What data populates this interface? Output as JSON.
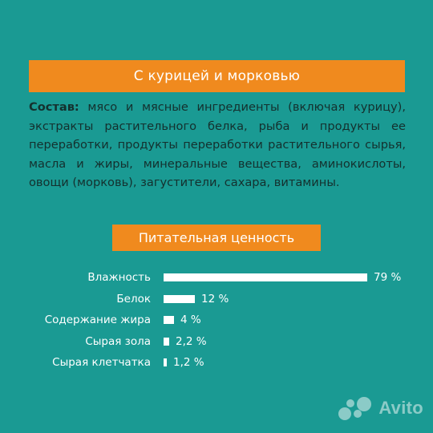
{
  "title": "С курицей и морковью",
  "composition": {
    "label": "Состав:",
    "text": "мясо и мясные ингредиенты (включая курицу), экстракты растительного белка, рыба и продукты ее переработки, продукты переработки растительного сырья, масла и жиры, минеральные вещества, аминокислоты, овощи (морковь), загустители, сахара, витамины."
  },
  "nutrition": {
    "heading": "Питательная ценность",
    "rows": [
      {
        "label": "Влажность",
        "value": 79,
        "display": "79 %"
      },
      {
        "label": "Белок",
        "value": 12,
        "display": "12 %"
      },
      {
        "label": "Содержание жира",
        "value": 4,
        "display": "4 %"
      },
      {
        "label": "Сырая зола",
        "value": 2.2,
        "display": "2,2 %"
      },
      {
        "label": "Сырая клетчатка",
        "value": 1.2,
        "display": "1,2 %"
      }
    ]
  },
  "watermark": {
    "text": "Avito",
    "icon": "avito-logo-icon"
  },
  "colors": {
    "background": "#1a9a93",
    "banner": "#f08a1e",
    "text_dark": "#14302e"
  }
}
